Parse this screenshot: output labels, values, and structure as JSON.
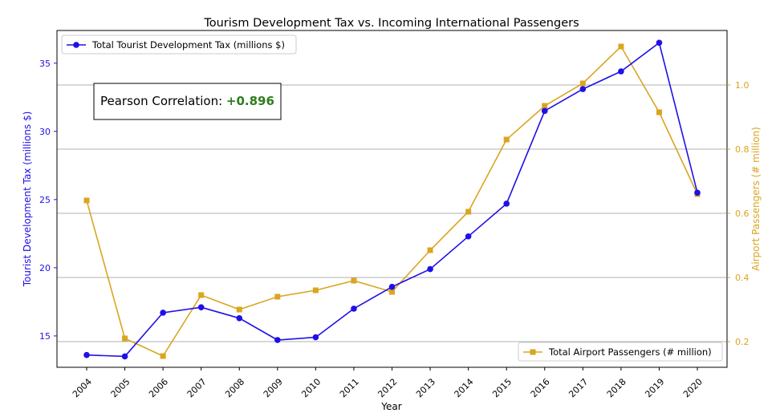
{
  "chart_data": {
    "type": "line",
    "title": "Tourism Development Tax vs. Incoming International Passengers",
    "xlabel": "Year",
    "ylabel_left": "Tourist Development Tax (millions $)",
    "ylabel_right": "Airport Passengers (# million)",
    "categories": [
      "2004",
      "2005",
      "2006",
      "2007",
      "2008",
      "2009",
      "2010",
      "2011",
      "2012",
      "2013",
      "2014",
      "2015",
      "2016",
      "2017",
      "2018",
      "2019",
      "2020"
    ],
    "y_left_ticks": [
      "15",
      "20",
      "25",
      "30",
      "35"
    ],
    "y_right_ticks": [
      "0.2",
      "0.4",
      "0.6",
      "0.8",
      "1.0"
    ],
    "ylim_left": [
      12.7,
      37.4
    ],
    "ylim_right": [
      0.12,
      1.17
    ],
    "grid": "horizontal lines at right-axis ticks",
    "series": [
      {
        "name": "Total Tourist Development Tax (millions $)",
        "axis": "left",
        "color": "#1f10e8",
        "marker": "circle",
        "values": [
          13.6,
          13.5,
          16.7,
          17.1,
          16.3,
          14.7,
          14.9,
          17.0,
          18.6,
          19.9,
          22.3,
          24.7,
          31.5,
          33.1,
          34.4,
          36.5,
          25.5
        ]
      },
      {
        "name": "Total Airport Passengers (# million)",
        "axis": "right",
        "color": "#daa520",
        "marker": "square",
        "values": [
          0.64,
          0.21,
          0.155,
          0.345,
          0.3,
          0.34,
          0.36,
          0.39,
          0.355,
          0.485,
          0.605,
          0.83,
          0.935,
          1.005,
          1.12,
          0.915,
          0.66
        ]
      }
    ],
    "legend_left": {
      "label": "Total Tourist Development Tax (millions $)",
      "placement": "upper-left"
    },
    "legend_right": {
      "label": "Total Airport Passengers (# million)",
      "placement": "lower-right"
    },
    "annotation": {
      "prefix": "Pearson Correlation: ",
      "value": "+0.896",
      "value_color": "#2e7d1e"
    }
  }
}
